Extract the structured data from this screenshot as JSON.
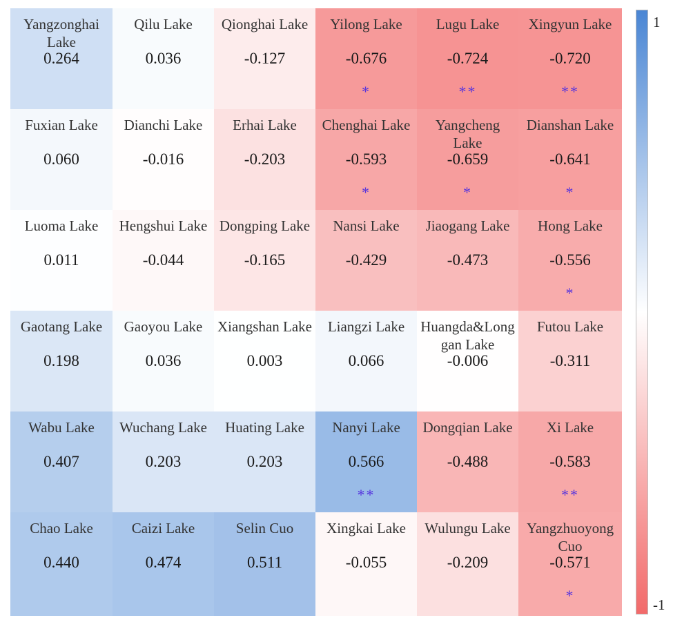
{
  "chart_data": {
    "type": "heatmap",
    "rows": 6,
    "cols": 6,
    "cells": [
      [
        {
          "name": "Yangzonghai\nLake",
          "value": 0.264,
          "sig": ""
        },
        {
          "name": "Qilu Lake",
          "value": 0.036,
          "sig": ""
        },
        {
          "name": "Qionghai Lake",
          "value": -0.127,
          "sig": ""
        },
        {
          "name": "Yilong Lake",
          "value": -0.676,
          "sig": "*"
        },
        {
          "name": "Lugu Lake",
          "value": -0.724,
          "sig": "**"
        },
        {
          "name": "Xingyun Lake",
          "value": -0.72,
          "sig": "**"
        }
      ],
      [
        {
          "name": "Fuxian Lake",
          "value": 0.06,
          "sig": ""
        },
        {
          "name": "Dianchi Lake",
          "value": -0.016,
          "sig": ""
        },
        {
          "name": "Erhai Lake",
          "value": -0.203,
          "sig": ""
        },
        {
          "name": "Chenghai Lake",
          "value": -0.593,
          "sig": "*"
        },
        {
          "name": "Yangcheng\nLake",
          "value": -0.659,
          "sig": "*"
        },
        {
          "name": "Dianshan Lake",
          "value": -0.641,
          "sig": "*"
        }
      ],
      [
        {
          "name": "Luoma Lake",
          "value": 0.011,
          "sig": ""
        },
        {
          "name": "Hengshui Lake",
          "value": -0.044,
          "sig": ""
        },
        {
          "name": "Dongping Lake",
          "value": -0.165,
          "sig": ""
        },
        {
          "name": "Nansi Lake",
          "value": -0.429,
          "sig": ""
        },
        {
          "name": "Jiaogang Lake",
          "value": -0.473,
          "sig": ""
        },
        {
          "name": "Hong Lake",
          "value": -0.556,
          "sig": "*"
        }
      ],
      [
        {
          "name": "Gaotang Lake",
          "value": 0.198,
          "sig": ""
        },
        {
          "name": "Gaoyou Lake",
          "value": 0.036,
          "sig": ""
        },
        {
          "name": "Xiangshan Lake",
          "value": 0.003,
          "sig": ""
        },
        {
          "name": "Liangzi Lake",
          "value": 0.066,
          "sig": ""
        },
        {
          "name": "Huangda&Long\ngan Lake",
          "value": -0.006,
          "sig": ""
        },
        {
          "name": "Futou Lake",
          "value": -0.311,
          "sig": ""
        }
      ],
      [
        {
          "name": "Wabu Lake",
          "value": 0.407,
          "sig": ""
        },
        {
          "name": "Wuchang Lake",
          "value": 0.203,
          "sig": ""
        },
        {
          "name": "Huating Lake",
          "value": 0.203,
          "sig": ""
        },
        {
          "name": "Nanyi Lake",
          "value": 0.566,
          "sig": "**"
        },
        {
          "name": "Dongqian Lake",
          "value": -0.488,
          "sig": ""
        },
        {
          "name": "Xi Lake",
          "value": -0.583,
          "sig": "**"
        }
      ],
      [
        {
          "name": "Chao Lake",
          "value": 0.44,
          "sig": ""
        },
        {
          "name": "Caizi Lake",
          "value": 0.474,
          "sig": ""
        },
        {
          "name": "Selin Cuo",
          "value": 0.511,
          "sig": ""
        },
        {
          "name": "Xingkai Lake",
          "value": -0.055,
          "sig": ""
        },
        {
          "name": "Wulungu Lake",
          "value": -0.209,
          "sig": ""
        },
        {
          "name": "Yangzhuoyong\nCuo",
          "value": -0.571,
          "sig": "*"
        }
      ]
    ],
    "colorbar": {
      "min": -1,
      "max": 1,
      "max_label": "1",
      "min_label": "-1",
      "colors": {
        "positive": "#4a86d4",
        "zero": "#ffffff",
        "negative": "#f26a6a"
      }
    },
    "colors": {
      "significance_mark": "#5533dd"
    }
  }
}
